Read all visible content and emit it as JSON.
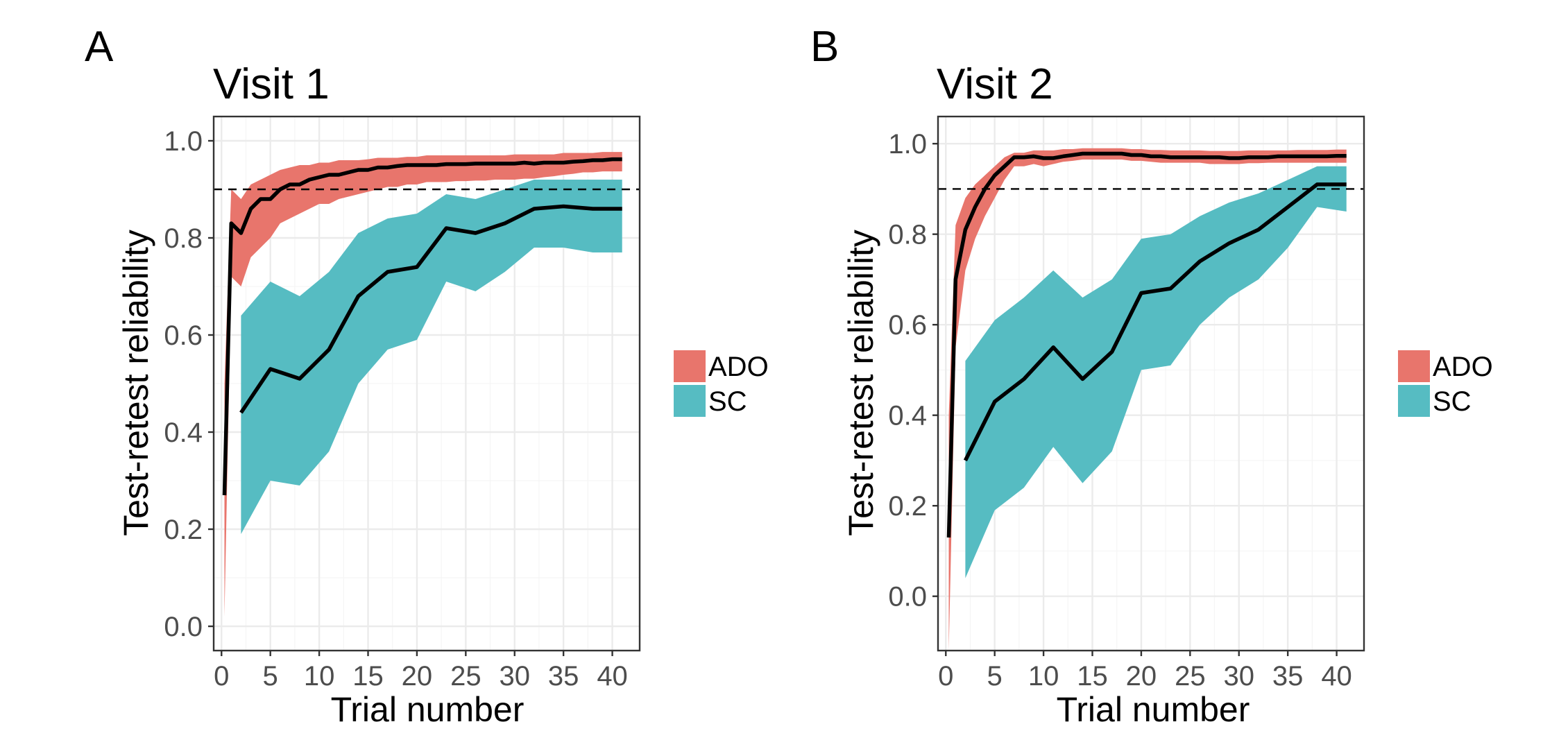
{
  "colors": {
    "ADO": "#E8756C",
    "SC": "#56BCC2",
    "mean_line": "#000000"
  },
  "legend": {
    "items": [
      {
        "label": "ADO",
        "key": "ADO"
      },
      {
        "label": "SC",
        "key": "SC"
      }
    ]
  },
  "chart_data": [
    {
      "type": "area",
      "panel_letter": "A",
      "title": "Visit 1",
      "xlabel": "Trial number",
      "ylabel": "Test-retest reliability",
      "xlim": [
        -0.8,
        42.8
      ],
      "ylim": [
        -0.05,
        1.05
      ],
      "x_ticks": [
        0,
        5,
        10,
        15,
        20,
        25,
        30,
        35,
        40
      ],
      "y_ticks": [
        0.0,
        0.2,
        0.4,
        0.6,
        0.8,
        1.0
      ],
      "y_tick_labels": [
        "0.0",
        "0.2",
        "0.4",
        "0.6",
        "0.8",
        "1.0"
      ],
      "reference_line": 0.9,
      "grid": true,
      "series": [
        {
          "name": "ADO",
          "x": [
            0.3,
            1,
            2,
            3,
            4,
            5,
            6,
            7,
            8,
            9,
            10,
            11,
            12,
            13,
            14,
            15,
            16,
            17,
            18,
            19,
            20,
            21,
            22,
            23,
            24,
            25,
            26,
            27,
            28,
            29,
            30,
            31,
            32,
            33,
            34,
            35,
            36,
            37,
            38,
            39,
            40,
            41
          ],
          "mean": [
            0.27,
            0.83,
            0.81,
            0.86,
            0.88,
            0.88,
            0.9,
            0.91,
            0.91,
            0.92,
            0.925,
            0.93,
            0.93,
            0.935,
            0.94,
            0.94,
            0.945,
            0.945,
            0.948,
            0.95,
            0.95,
            0.95,
            0.95,
            0.952,
            0.952,
            0.952,
            0.953,
            0.953,
            0.953,
            0.953,
            0.953,
            0.955,
            0.953,
            0.955,
            0.955,
            0.955,
            0.957,
            0.958,
            0.96,
            0.96,
            0.962,
            0.962
          ],
          "lower": [
            0.02,
            0.72,
            0.7,
            0.76,
            0.78,
            0.8,
            0.83,
            0.84,
            0.85,
            0.86,
            0.87,
            0.87,
            0.88,
            0.885,
            0.89,
            0.895,
            0.9,
            0.905,
            0.905,
            0.91,
            0.91,
            0.915,
            0.915,
            0.915,
            0.917,
            0.917,
            0.918,
            0.918,
            0.92,
            0.92,
            0.92,
            0.922,
            0.922,
            0.925,
            0.927,
            0.93,
            0.932,
            0.935,
            0.935,
            0.937,
            0.937,
            0.937
          ],
          "upper": [
            0.5,
            0.9,
            0.88,
            0.91,
            0.92,
            0.93,
            0.94,
            0.945,
            0.95,
            0.95,
            0.955,
            0.955,
            0.96,
            0.96,
            0.96,
            0.962,
            0.965,
            0.965,
            0.965,
            0.967,
            0.967,
            0.97,
            0.97,
            0.97,
            0.97,
            0.97,
            0.97,
            0.97,
            0.97,
            0.97,
            0.972,
            0.972,
            0.972,
            0.972,
            0.972,
            0.975,
            0.975,
            0.975,
            0.975,
            0.977,
            0.977,
            0.977
          ]
        },
        {
          "name": "SC",
          "x": [
            2,
            5,
            8,
            11,
            14,
            17,
            20,
            23,
            26,
            29,
            32,
            35,
            38,
            41
          ],
          "mean": [
            0.44,
            0.53,
            0.51,
            0.57,
            0.68,
            0.73,
            0.74,
            0.82,
            0.81,
            0.83,
            0.86,
            0.865,
            0.86,
            0.86
          ],
          "lower": [
            0.19,
            0.3,
            0.29,
            0.36,
            0.5,
            0.57,
            0.59,
            0.71,
            0.69,
            0.73,
            0.78,
            0.78,
            0.77,
            0.77
          ],
          "upper": [
            0.64,
            0.71,
            0.68,
            0.73,
            0.81,
            0.84,
            0.85,
            0.89,
            0.88,
            0.9,
            0.92,
            0.92,
            0.92,
            0.92
          ]
        }
      ]
    },
    {
      "type": "area",
      "panel_letter": "B",
      "title": "Visit 2",
      "xlabel": "Trial number",
      "ylabel": "Test-retest reliability",
      "xlim": [
        -0.8,
        42.8
      ],
      "ylim": [
        -0.12,
        1.06
      ],
      "x_ticks": [
        0,
        5,
        10,
        15,
        20,
        25,
        30,
        35,
        40
      ],
      "y_ticks": [
        0.0,
        0.2,
        0.4,
        0.6,
        0.8,
        1.0
      ],
      "y_tick_labels": [
        "0.0",
        "0.2",
        "0.4",
        "0.6",
        "0.8",
        "1.0"
      ],
      "reference_line": 0.9,
      "grid": true,
      "series": [
        {
          "name": "ADO",
          "x": [
            0.3,
            1,
            2,
            3,
            4,
            5,
            6,
            7,
            8,
            9,
            10,
            11,
            12,
            13,
            14,
            15,
            16,
            17,
            18,
            19,
            20,
            21,
            22,
            23,
            24,
            25,
            26,
            27,
            28,
            29,
            30,
            31,
            32,
            33,
            34,
            35,
            36,
            37,
            38,
            39,
            40,
            41
          ],
          "mean": [
            0.13,
            0.7,
            0.81,
            0.86,
            0.9,
            0.93,
            0.95,
            0.97,
            0.97,
            0.972,
            0.968,
            0.968,
            0.972,
            0.975,
            0.978,
            0.978,
            0.978,
            0.978,
            0.978,
            0.975,
            0.975,
            0.972,
            0.972,
            0.97,
            0.97,
            0.97,
            0.97,
            0.97,
            0.97,
            0.968,
            0.968,
            0.97,
            0.97,
            0.97,
            0.972,
            0.972,
            0.972,
            0.972,
            0.972,
            0.972,
            0.973,
            0.973
          ],
          "lower": [
            -0.12,
            0.55,
            0.72,
            0.79,
            0.84,
            0.88,
            0.92,
            0.95,
            0.95,
            0.955,
            0.95,
            0.955,
            0.96,
            0.962,
            0.965,
            0.965,
            0.965,
            0.965,
            0.965,
            0.962,
            0.962,
            0.96,
            0.958,
            0.958,
            0.958,
            0.958,
            0.958,
            0.955,
            0.955,
            0.955,
            0.955,
            0.957,
            0.957,
            0.958,
            0.958,
            0.958,
            0.958,
            0.958,
            0.958,
            0.958,
            0.958,
            0.958
          ],
          "upper": [
            0.4,
            0.82,
            0.88,
            0.91,
            0.93,
            0.95,
            0.97,
            0.98,
            0.98,
            0.985,
            0.985,
            0.985,
            0.988,
            0.988,
            0.99,
            0.99,
            0.99,
            0.99,
            0.99,
            0.988,
            0.988,
            0.986,
            0.986,
            0.985,
            0.985,
            0.985,
            0.985,
            0.984,
            0.984,
            0.984,
            0.984,
            0.985,
            0.985,
            0.985,
            0.985,
            0.985,
            0.986,
            0.986,
            0.986,
            0.986,
            0.987,
            0.987
          ]
        },
        {
          "name": "SC",
          "x": [
            2,
            5,
            8,
            11,
            14,
            17,
            20,
            23,
            26,
            29,
            32,
            35,
            38,
            41
          ],
          "mean": [
            0.3,
            0.43,
            0.48,
            0.55,
            0.48,
            0.54,
            0.67,
            0.68,
            0.74,
            0.78,
            0.81,
            0.86,
            0.91,
            0.91
          ],
          "lower": [
            0.04,
            0.19,
            0.24,
            0.33,
            0.25,
            0.32,
            0.5,
            0.51,
            0.6,
            0.66,
            0.7,
            0.77,
            0.86,
            0.85
          ],
          "upper": [
            0.52,
            0.61,
            0.66,
            0.72,
            0.66,
            0.7,
            0.79,
            0.8,
            0.84,
            0.87,
            0.89,
            0.92,
            0.95,
            0.95
          ]
        }
      ]
    }
  ]
}
